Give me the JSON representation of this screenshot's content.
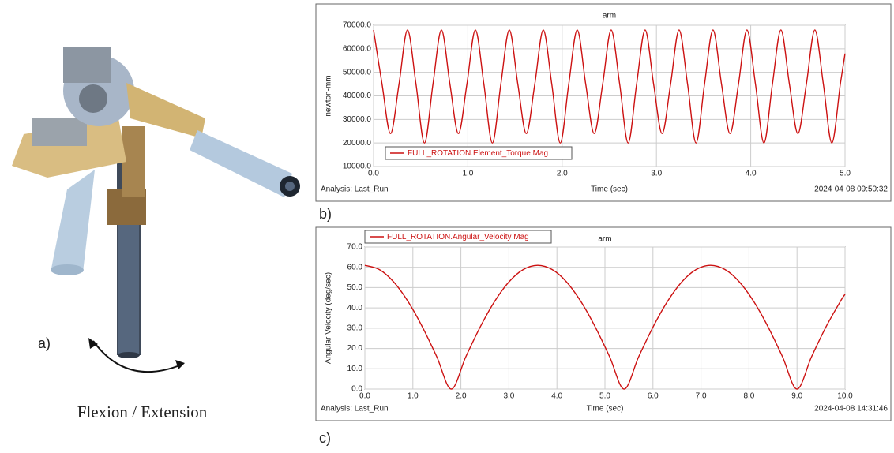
{
  "chart_data": [
    {
      "type": "line",
      "title": "arm",
      "x_label": "Time (sec)",
      "y_label": "newton-mm",
      "footer_left": "Analysis:  Last_Run",
      "footer_right": "2024-04-08 09:50:32",
      "x": [
        0.0,
        0.09,
        0.18,
        0.27,
        0.36,
        0.45,
        0.54,
        0.63,
        0.72,
        0.81,
        0.9,
        0.99,
        1.08,
        1.17,
        1.26,
        1.35,
        1.44,
        1.53,
        1.62,
        1.71,
        1.8,
        1.89,
        1.98,
        2.07,
        2.16,
        2.25,
        2.34,
        2.43,
        2.52,
        2.61,
        2.7,
        2.79,
        2.88,
        2.97,
        3.06,
        3.15,
        3.24,
        3.33,
        3.42,
        3.51,
        3.6,
        3.69,
        3.78,
        3.87,
        3.96,
        4.05,
        4.14,
        4.23,
        4.32,
        4.41,
        4.5,
        4.59,
        4.68,
        4.77,
        4.86,
        4.95,
        5.0
      ],
      "series": [
        {
          "name": "FULL_ROTATION.Element_Torque Mag",
          "color": "#cc1111",
          "values": [
            68000,
            45000,
            24000,
            45000,
            68000,
            45000,
            20000,
            45000,
            68000,
            45000,
            24000,
            45000,
            68000,
            45000,
            20000,
            45000,
            68000,
            45000,
            24000,
            45000,
            68000,
            45000,
            20000,
            45000,
            68000,
            45000,
            24000,
            45000,
            68000,
            45000,
            20000,
            45000,
            68000,
            45000,
            24000,
            45000,
            68000,
            45000,
            20000,
            45000,
            68000,
            45000,
            24000,
            45000,
            68000,
            45000,
            20000,
            45000,
            68000,
            45000,
            24000,
            45000,
            68000,
            45000,
            20000,
            45000,
            58000
          ]
        }
      ],
      "xlim": [
        0,
        5
      ],
      "ylim": [
        10000,
        70000
      ],
      "xticks": [
        {
          "value": 0,
          "label": "0.0"
        },
        {
          "value": 1,
          "label": "1.0"
        },
        {
          "value": 2,
          "label": "2.0"
        },
        {
          "value": 3,
          "label": "3.0"
        },
        {
          "value": 4,
          "label": "4.0"
        },
        {
          "value": 5,
          "label": "5.0"
        }
      ],
      "yticks": [
        {
          "value": 10000,
          "label": "10000.0"
        },
        {
          "value": 20000,
          "label": "20000.0"
        },
        {
          "value": 30000,
          "label": "30000.0"
        },
        {
          "value": 40000,
          "label": "40000.0"
        },
        {
          "value": 50000,
          "label": "50000.0"
        },
        {
          "value": 60000,
          "label": "60000.0"
        },
        {
          "value": 70000,
          "label": "70000.0"
        }
      ],
      "grid": true,
      "legend": "lower left"
    },
    {
      "type": "line",
      "title": "arm",
      "x_label": "Time (sec)",
      "y_label": "Angular Velocity (deg/sec)",
      "footer_left": "Analysis:  Last_Run",
      "footer_right": "2024-04-08 14:31:46",
      "x": [
        0,
        0.3,
        0.6,
        0.9,
        1.2,
        1.5,
        1.8,
        2.1,
        2.4,
        2.7,
        3.0,
        3.3,
        3.6,
        3.9,
        4.2,
        4.5,
        4.8,
        5.1,
        5.4,
        5.7,
        6.0,
        6.3,
        6.6,
        6.9,
        7.2,
        7.5,
        7.8,
        8.1,
        8.4,
        8.7,
        9.0,
        9.3,
        9.6,
        9.9,
        10.0
      ],
      "series": [
        {
          "name": "FULL_ROTATION.Angular_Velocity Mag",
          "color": "#cc1111",
          "values": [
            61,
            58.9,
            52.8,
            43.1,
            30.5,
            15.8,
            0,
            15.8,
            30.5,
            43.1,
            52.8,
            58.9,
            61,
            58.9,
            52.8,
            43.1,
            30.5,
            15.8,
            0,
            15.8,
            30.5,
            43.1,
            52.8,
            58.9,
            61,
            58.9,
            52.8,
            43.1,
            30.5,
            15.8,
            0,
            15.8,
            30.5,
            43.1,
            46.7
          ]
        }
      ],
      "xlim": [
        0,
        10
      ],
      "ylim": [
        0,
        70
      ],
      "xticks": [
        {
          "value": 0,
          "label": "0.0"
        },
        {
          "value": 1,
          "label": "1.0"
        },
        {
          "value": 2,
          "label": "2.0"
        },
        {
          "value": 3,
          "label": "3.0"
        },
        {
          "value": 4,
          "label": "4.0"
        },
        {
          "value": 5,
          "label": "5.0"
        },
        {
          "value": 6,
          "label": "6.0"
        },
        {
          "value": 7,
          "label": "7.0"
        },
        {
          "value": 8,
          "label": "8.0"
        },
        {
          "value": 9,
          "label": "9.0"
        },
        {
          "value": 10,
          "label": "10.0"
        }
      ],
      "yticks": [
        {
          "value": 0,
          "label": "0.0"
        },
        {
          "value": 10,
          "label": "10.0"
        },
        {
          "value": 20,
          "label": "20.0"
        },
        {
          "value": 30,
          "label": "30.0"
        },
        {
          "value": 40,
          "label": "40.0"
        },
        {
          "value": 50,
          "label": "50.0"
        },
        {
          "value": 60,
          "label": "60.0"
        },
        {
          "value": 70,
          "label": "70.0"
        }
      ],
      "grid": true,
      "legend": "top left"
    }
  ],
  "panel_labels": [
    "a)",
    "b)",
    "c)"
  ],
  "caption": "Flexion / Extension"
}
